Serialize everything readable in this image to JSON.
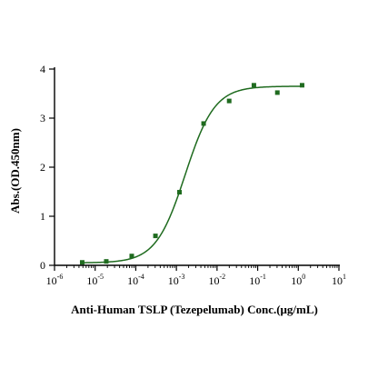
{
  "chart_data": {
    "type": "scatter",
    "title": "",
    "xlabel": "Anti-Human TSLP (Tezepelumab) Conc.(μg/mL)",
    "ylabel": "Abs.(OD.450nm)",
    "xscale": "log",
    "xlim": [
      1e-06,
      10
    ],
    "ylim": [
      0,
      4
    ],
    "x_ticks": [
      {
        "value": 1e-06,
        "base": "10",
        "exp": "-6"
      },
      {
        "value": 1e-05,
        "base": "10",
        "exp": "-5"
      },
      {
        "value": 0.0001,
        "base": "10",
        "exp": "-4"
      },
      {
        "value": 0.001,
        "base": "10",
        "exp": "-3"
      },
      {
        "value": 0.01,
        "base": "10",
        "exp": "-2"
      },
      {
        "value": 0.1,
        "base": "10",
        "exp": "-1"
      },
      {
        "value": 1,
        "base": "10",
        "exp": "0"
      },
      {
        "value": 10,
        "base": "10",
        "exp": "1"
      }
    ],
    "y_ticks": [
      {
        "value": 0,
        "label": "0"
      },
      {
        "value": 1,
        "label": "1"
      },
      {
        "value": 2,
        "label": "2"
      },
      {
        "value": 3,
        "label": "3"
      },
      {
        "value": 4,
        "label": "4"
      }
    ],
    "grid": false,
    "legend": "none",
    "series": [
      {
        "color": "#1f6b1f",
        "points": [
          {
            "x": 4.8e-06,
            "y": 0.06
          },
          {
            "x": 1.88e-05,
            "y": 0.08
          },
          {
            "x": 7.95e-05,
            "y": 0.19
          },
          {
            "x": 0.000305,
            "y": 0.6
          },
          {
            "x": 0.00119,
            "y": 1.49
          },
          {
            "x": 0.00467,
            "y": 2.89
          },
          {
            "x": 0.0199,
            "y": 3.35
          },
          {
            "x": 0.0808,
            "y": 3.67
          },
          {
            "x": 0.305,
            "y": 3.52
          },
          {
            "x": 1.24,
            "y": 3.67
          }
        ],
        "fit": {
          "model": "4PL",
          "bottom": 0.05,
          "top": 3.65,
          "ec50": 0.00165,
          "hill": 1.2
        }
      }
    ]
  }
}
